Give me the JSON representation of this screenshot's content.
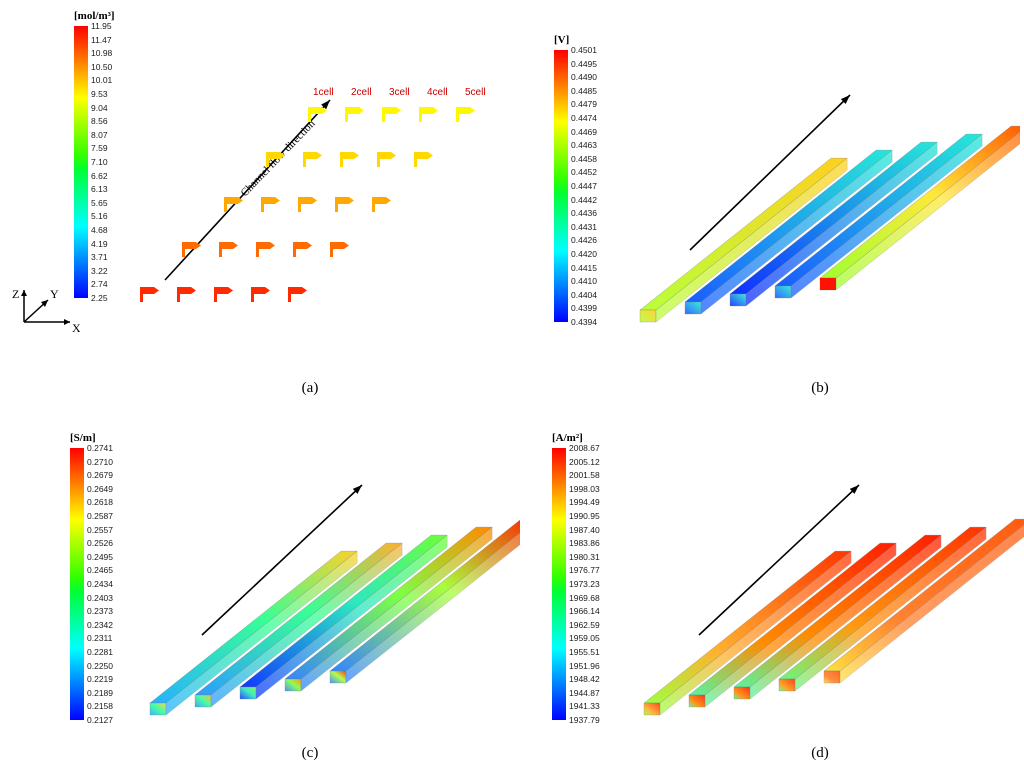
{
  "rainbow": [
    "#0000ff",
    "#0033ff",
    "#0066ff",
    "#0099ff",
    "#00ccff",
    "#00ffff",
    "#00ffcc",
    "#00ff99",
    "#00ff66",
    "#00ff33",
    "#33ff00",
    "#66ff00",
    "#99ff00",
    "#ccff00",
    "#ffff00",
    "#ffcc00",
    "#ff9900",
    "#ff6600",
    "#ff3300",
    "#ff0000"
  ],
  "panelA": {
    "unit": "[mol/m³]",
    "ticks": [
      "11.95",
      "11.47",
      "10.98",
      "10.50",
      "10.01",
      "9.53",
      "9.04",
      "8.56",
      "8.07",
      "7.59",
      "7.10",
      "6.62",
      "6.13",
      "5.65",
      "5.16",
      "4.68",
      "4.19",
      "3.71",
      "3.22",
      "2.74",
      "2.25"
    ],
    "cell_labels": [
      "1cell",
      "2cell",
      "3cell",
      "4cell",
      "5cell"
    ],
    "flow_label": "Channel flow direction",
    "row_colors": [
      "#ff2a00",
      "#ff6b00",
      "#ffa800",
      "#ffd800",
      "#fff700"
    ],
    "sublabel": "(a)"
  },
  "panelB": {
    "unit": "[V]",
    "ticks": [
      "0.4501",
      "0.4495",
      "0.4490",
      "0.4485",
      "0.4479",
      "0.4474",
      "0.4469",
      "0.4463",
      "0.4458",
      "0.4452",
      "0.4447",
      "0.4442",
      "0.4436",
      "0.4431",
      "0.4426",
      "0.4420",
      "0.4415",
      "0.4410",
      "0.4404",
      "0.4399",
      "0.4394"
    ],
    "plate_gradients": [
      {
        "from": "#b8ff3a",
        "to": "#ffd020"
      },
      {
        "from": "#1a5cff",
        "to": "#25e8d8"
      },
      {
        "from": "#102eff",
        "to": "#25e8d8"
      },
      {
        "from": "#1a5cff",
        "to": "#25e8d8"
      },
      {
        "from": "#a0ff30",
        "via": "#ffe83a",
        "to": "#ff5a00",
        "corner": "#ff1200"
      }
    ],
    "sublabel": "(b)"
  },
  "panelC": {
    "unit": "[S/m]",
    "ticks": [
      "0.2741",
      "0.2710",
      "0.2679",
      "0.2649",
      "0.2618",
      "0.2587",
      "0.2557",
      "0.2526",
      "0.2495",
      "0.2465",
      "0.2434",
      "0.2403",
      "0.2373",
      "0.2342",
      "0.2311",
      "0.2281",
      "0.2250",
      "0.2219",
      "0.2189",
      "0.2158",
      "0.2127"
    ],
    "plates": [
      {
        "base": "#26b0ff",
        "mid": "#37ff96",
        "hi": "#ffd02a"
      },
      {
        "base": "#2d9bff",
        "mid": "#37ff96",
        "hi": "#ffb030"
      },
      {
        "base": "#1038ff",
        "mid": "#2ce8c0",
        "hi": "#6eff3a"
      },
      {
        "base": "#3285ff",
        "mid": "#7eff46",
        "hi": "#ff8a00"
      },
      {
        "base": "#3285ff",
        "mid": "#a8ff3c",
        "hi": "#ff2400"
      }
    ],
    "sublabel": "(c)"
  },
  "panelD": {
    "unit": "[A/m²]",
    "ticks": [
      "2008.67",
      "2005.12",
      "2001.58",
      "1998.03",
      "1994.49",
      "1990.95",
      "1987.40",
      "1983.86",
      "1980.31",
      "1976.77",
      "1973.23",
      "1969.68",
      "1966.14",
      "1962.59",
      "1959.05",
      "1955.51",
      "1951.96",
      "1948.42",
      "1944.87",
      "1941.33",
      "1937.79"
    ],
    "plates": [
      {
        "base": "#a0ff40",
        "mid": "#ffb030",
        "hi": "#ff3600"
      },
      {
        "base": "#55f8a0",
        "mid": "#ff8c00",
        "hi": "#ff1e00"
      },
      {
        "base": "#55f8a0",
        "mid": "#ff8c00",
        "hi": "#ff1e00"
      },
      {
        "base": "#6af880",
        "mid": "#ff9a10",
        "hi": "#ff3200"
      },
      {
        "base": "#ffe040",
        "mid": "#ff8230",
        "hi": "#ff5a10"
      }
    ],
    "sublabel": "(d)"
  }
}
